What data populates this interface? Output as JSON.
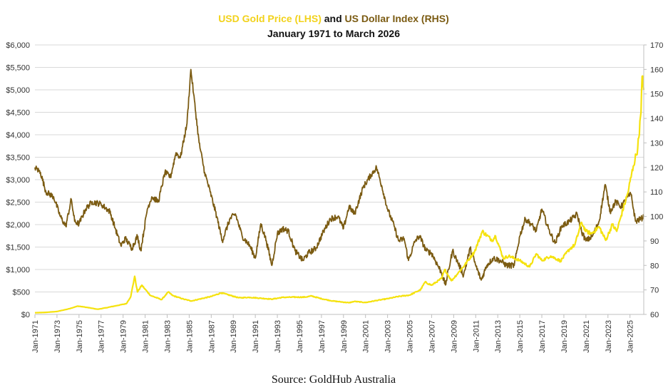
{
  "chart_data": {
    "type": "line",
    "title_parts": [
      {
        "text": "USD Gold Price (LHS)",
        "color": "#F2D21B"
      },
      {
        "text": " and ",
        "color": "#111111"
      },
      {
        "text": "US Dollar Index (RHS)",
        "color": "#7B5B12"
      }
    ],
    "subtitle": "January 1971 to March 2026",
    "source": "Source: GoldHub Australia",
    "x_range": [
      1971.0,
      2026.25
    ],
    "x_tick_labels": [
      "Jan-1971",
      "Jan-1973",
      "Jan-1975",
      "Jan-1977",
      "Jan-1979",
      "Jan-1981",
      "Jan-1983",
      "Jan-1985",
      "Jan-1987",
      "Jan-1989",
      "Jan-1991",
      "Jan-1993",
      "Jan-1995",
      "Jan-1997",
      "Jan-1999",
      "Jan-2001",
      "Jan-2003",
      "Jan-2005",
      "Jan-2007",
      "Jan-2009",
      "Jan-2011",
      "Jan-2013",
      "Jan-2015",
      "Jan-2017",
      "Jan-2019",
      "Jan-2021",
      "Jan-2023",
      "Jan-2025"
    ],
    "y_left": {
      "min": 0,
      "max": 6000,
      "ticks": [
        "$0",
        "$500",
        "$1,000",
        "$1,500",
        "$2,000",
        "$2,500",
        "$3,000",
        "$3,500",
        "$4,000",
        "$4,500",
        "$5,000",
        "$5,500",
        "$6,000"
      ]
    },
    "y_right": {
      "min": 60,
      "max": 170,
      "ticks": [
        "60",
        "70",
        "80",
        "90",
        "100",
        "110",
        "120",
        "130",
        "140",
        "150",
        "160",
        "170"
      ]
    },
    "grid": true,
    "series": [
      {
        "name": "USD Gold Price (LHS)",
        "axis": "left",
        "color": "#F5E20F",
        "points": [
          [
            1971.0,
            37
          ],
          [
            1972.0,
            46
          ],
          [
            1973.0,
            65
          ],
          [
            1974.0,
            120
          ],
          [
            1974.9,
            185
          ],
          [
            1975.5,
            165
          ],
          [
            1976.7,
            115
          ],
          [
            1977.5,
            150
          ],
          [
            1978.5,
            200
          ],
          [
            1979.3,
            240
          ],
          [
            1979.7,
            400
          ],
          [
            1980.05,
            850
          ],
          [
            1980.3,
            500
          ],
          [
            1980.7,
            650
          ],
          [
            1981.0,
            560
          ],
          [
            1981.5,
            420
          ],
          [
            1982.5,
            330
          ],
          [
            1983.1,
            500
          ],
          [
            1983.5,
            420
          ],
          [
            1984.5,
            340
          ],
          [
            1985.2,
            300
          ],
          [
            1986.0,
            345
          ],
          [
            1987.0,
            400
          ],
          [
            1987.9,
            480
          ],
          [
            1988.5,
            440
          ],
          [
            1989.5,
            370
          ],
          [
            1990.5,
            380
          ],
          [
            1991.5,
            360
          ],
          [
            1992.5,
            340
          ],
          [
            1993.5,
            380
          ],
          [
            1994.5,
            385
          ],
          [
            1995.5,
            385
          ],
          [
            1996.1,
            410
          ],
          [
            1997.0,
            350
          ],
          [
            1998.0,
            300
          ],
          [
            1999.5,
            260
          ],
          [
            2000.0,
            290
          ],
          [
            2001.0,
            265
          ],
          [
            2002.0,
            310
          ],
          [
            2003.0,
            350
          ],
          [
            2004.0,
            400
          ],
          [
            2005.0,
            430
          ],
          [
            2006.0,
            550
          ],
          [
            2006.4,
            720
          ],
          [
            2007.0,
            650
          ],
          [
            2007.9,
            800
          ],
          [
            2008.2,
            1000
          ],
          [
            2008.8,
            750
          ],
          [
            2009.5,
            950
          ],
          [
            2010.0,
            1100
          ],
          [
            2010.9,
            1400
          ],
          [
            2011.6,
            1850
          ],
          [
            2012.5,
            1650
          ],
          [
            2012.8,
            1750
          ],
          [
            2013.5,
            1250
          ],
          [
            2014.0,
            1300
          ],
          [
            2015.0,
            1200
          ],
          [
            2015.9,
            1060
          ],
          [
            2016.5,
            1350
          ],
          [
            2017.0,
            1200
          ],
          [
            2017.8,
            1300
          ],
          [
            2018.7,
            1190
          ],
          [
            2019.5,
            1450
          ],
          [
            2020.0,
            1550
          ],
          [
            2020.6,
            2050
          ],
          [
            2021.0,
            1850
          ],
          [
            2021.5,
            1800
          ],
          [
            2022.2,
            1950
          ],
          [
            2022.8,
            1650
          ],
          [
            2023.4,
            2000
          ],
          [
            2023.8,
            1850
          ],
          [
            2024.2,
            2200
          ],
          [
            2024.8,
            2700
          ],
          [
            2025.3,
            3300
          ],
          [
            2025.7,
            3700
          ],
          [
            2026.0,
            4500
          ],
          [
            2026.1,
            5300
          ],
          [
            2026.25,
            5000
          ]
        ]
      },
      {
        "name": "US Dollar Index (RHS)",
        "axis": "right",
        "color": "#7B5B12",
        "points": [
          [
            1971.0,
            120
          ],
          [
            1971.5,
            118
          ],
          [
            1972.0,
            110
          ],
          [
            1972.7,
            108
          ],
          [
            1973.3,
            100
          ],
          [
            1973.8,
            96
          ],
          [
            1974.3,
            107
          ],
          [
            1974.6,
            98
          ],
          [
            1975.0,
            97
          ],
          [
            1975.6,
            103
          ],
          [
            1976.2,
            106
          ],
          [
            1977.0,
            105
          ],
          [
            1977.8,
            102
          ],
          [
            1978.3,
            95
          ],
          [
            1978.8,
            88
          ],
          [
            1979.2,
            91
          ],
          [
            1979.8,
            87
          ],
          [
            1980.3,
            92
          ],
          [
            1980.6,
            86
          ],
          [
            1981.2,
            103
          ],
          [
            1981.6,
            108
          ],
          [
            1982.2,
            106
          ],
          [
            1982.8,
            118
          ],
          [
            1983.3,
            116
          ],
          [
            1983.8,
            126
          ],
          [
            1984.2,
            124
          ],
          [
            1984.8,
            138
          ],
          [
            1985.15,
            160
          ],
          [
            1985.4,
            150
          ],
          [
            1985.9,
            130
          ],
          [
            1986.4,
            118
          ],
          [
            1986.9,
            110
          ],
          [
            1987.5,
            100
          ],
          [
            1988.0,
            90
          ],
          [
            1988.7,
            99
          ],
          [
            1989.2,
            101
          ],
          [
            1989.8,
            92
          ],
          [
            1990.5,
            88
          ],
          [
            1991.0,
            83
          ],
          [
            1991.5,
            97
          ],
          [
            1992.0,
            90
          ],
          [
            1992.5,
            80
          ],
          [
            1993.0,
            93
          ],
          [
            1993.5,
            95
          ],
          [
            1994.0,
            94
          ],
          [
            1994.6,
            86
          ],
          [
            1995.3,
            82
          ],
          [
            1995.8,
            85
          ],
          [
            1996.5,
            87
          ],
          [
            1997.2,
            94
          ],
          [
            1997.8,
            99
          ],
          [
            1998.5,
            100
          ],
          [
            1999.0,
            95
          ],
          [
            1999.5,
            104
          ],
          [
            2000.0,
            101
          ],
          [
            2000.8,
            112
          ],
          [
            2001.5,
            117
          ],
          [
            2002.0,
            120
          ],
          [
            2002.5,
            112
          ],
          [
            2003.0,
            103
          ],
          [
            2003.6,
            96
          ],
          [
            2004.0,
            90
          ],
          [
            2004.5,
            91
          ],
          [
            2004.9,
            82
          ],
          [
            2005.5,
            90
          ],
          [
            2005.9,
            92
          ],
          [
            2006.5,
            86
          ],
          [
            2007.0,
            85
          ],
          [
            2007.9,
            77
          ],
          [
            2008.25,
            72
          ],
          [
            2008.9,
            86
          ],
          [
            2009.3,
            82
          ],
          [
            2009.9,
            76
          ],
          [
            2010.5,
            87
          ],
          [
            2011.0,
            80
          ],
          [
            2011.5,
            74
          ],
          [
            2012.0,
            80
          ],
          [
            2012.6,
            83
          ],
          [
            2013.2,
            82
          ],
          [
            2013.8,
            80
          ],
          [
            2014.5,
            80
          ],
          [
            2015.0,
            92
          ],
          [
            2015.5,
            99
          ],
          [
            2016.0,
            97
          ],
          [
            2016.5,
            94
          ],
          [
            2017.0,
            103
          ],
          [
            2017.6,
            95
          ],
          [
            2018.2,
            89
          ],
          [
            2018.8,
            96
          ],
          [
            2019.5,
            98
          ],
          [
            2020.2,
            101
          ],
          [
            2020.6,
            94
          ],
          [
            2021.0,
            90
          ],
          [
            2021.6,
            92
          ],
          [
            2022.2,
            98
          ],
          [
            2022.75,
            113
          ],
          [
            2023.2,
            102
          ],
          [
            2023.7,
            106
          ],
          [
            2024.2,
            104
          ],
          [
            2024.8,
            108
          ],
          [
            2025.1,
            109
          ],
          [
            2025.5,
            98
          ],
          [
            2026.0,
            99
          ],
          [
            2026.25,
            100
          ]
        ]
      }
    ]
  }
}
